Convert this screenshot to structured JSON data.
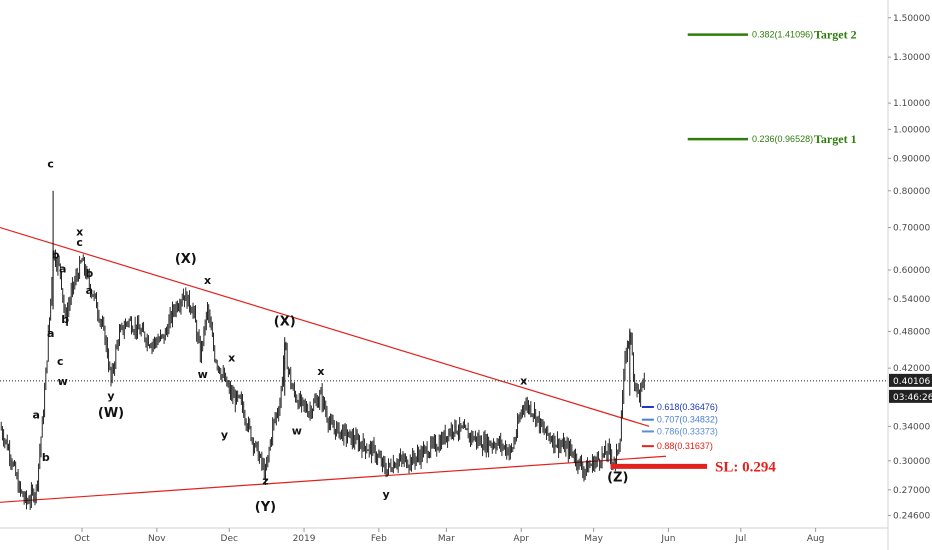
{
  "chart_data": {
    "type": "candlestick",
    "y_scale": "log",
    "ylim": [
      0.235,
      1.6
    ],
    "x_range": [
      "2018-08-28",
      "2019-08-31"
    ],
    "y_ticks": [
      "1.50000",
      "1.30000",
      "1.10000",
      "1.00000",
      "0.90000",
      "0.80000",
      "0.70000",
      "0.60000",
      "0.54000",
      "0.48000",
      "0.42000",
      "0.34000",
      "0.30000",
      "0.27000",
      "0.24600"
    ],
    "y_tick_values": [
      1.5,
      1.3,
      1.1,
      1.0,
      0.9,
      0.8,
      0.7,
      0.6,
      0.54,
      0.48,
      0.42,
      0.34,
      0.3,
      0.27,
      0.246
    ],
    "x_ticks": [
      {
        "label": "Oct",
        "date": "2018-10-01"
      },
      {
        "label": "Nov",
        "date": "2018-11-01"
      },
      {
        "label": "Dec",
        "date": "2018-12-01"
      },
      {
        "label": "2019",
        "date": "2019-01-01"
      },
      {
        "label": "Feb",
        "date": "2019-02-01"
      },
      {
        "label": "Mar",
        "date": "2019-03-01"
      },
      {
        "label": "Apr",
        "date": "2019-04-01"
      },
      {
        "label": "May",
        "date": "2019-05-01"
      },
      {
        "label": "Jun",
        "date": "2019-06-01"
      },
      {
        "label": "Jul",
        "date": "2019-07-01"
      },
      {
        "label": "Aug",
        "date": "2019-08-01"
      }
    ],
    "price_path": [
      [
        "2018-08-28",
        0.34
      ],
      [
        "2018-09-01",
        0.31
      ],
      [
        "2018-09-05",
        0.27
      ],
      [
        "2018-09-08",
        0.258
      ],
      [
        "2018-09-12",
        0.27
      ],
      [
        "2018-09-15",
        0.36
      ],
      [
        "2018-09-18",
        0.54
      ],
      [
        "2018-09-19",
        0.64
      ],
      [
        "2018-09-22",
        0.6
      ],
      [
        "2018-09-24",
        0.5
      ],
      [
        "2018-09-27",
        0.56
      ],
      [
        "2018-10-01",
        0.62
      ],
      [
        "2018-10-04",
        0.57
      ],
      [
        "2018-10-07",
        0.53
      ],
      [
        "2018-10-11",
        0.46
      ],
      [
        "2018-10-13",
        0.4
      ],
      [
        "2018-10-16",
        0.47
      ],
      [
        "2018-10-20",
        0.5
      ],
      [
        "2018-10-25",
        0.48
      ],
      [
        "2018-10-30",
        0.46
      ],
      [
        "2018-11-04",
        0.47
      ],
      [
        "2018-11-08",
        0.52
      ],
      [
        "2018-11-12",
        0.55
      ],
      [
        "2018-11-16",
        0.52
      ],
      [
        "2018-11-19",
        0.44
      ],
      [
        "2018-11-22",
        0.52
      ],
      [
        "2018-11-25",
        0.44
      ],
      [
        "2018-11-28",
        0.41
      ],
      [
        "2018-12-02",
        0.38
      ],
      [
        "2018-12-06",
        0.37
      ],
      [
        "2018-12-10",
        0.33
      ],
      [
        "2018-12-14",
        0.3
      ],
      [
        "2018-12-16",
        0.285
      ],
      [
        "2018-12-19",
        0.34
      ],
      [
        "2018-12-22",
        0.37
      ],
      [
        "2018-12-24",
        0.45
      ],
      [
        "2018-12-27",
        0.39
      ],
      [
        "2018-12-30",
        0.37
      ],
      [
        "2019-01-03",
        0.36
      ],
      [
        "2019-01-08",
        0.38
      ],
      [
        "2019-01-12",
        0.34
      ],
      [
        "2019-01-18",
        0.33
      ],
      [
        "2019-01-24",
        0.32
      ],
      [
        "2019-01-30",
        0.31
      ],
      [
        "2019-02-04",
        0.29
      ],
      [
        "2019-02-08",
        0.3
      ],
      [
        "2019-02-14",
        0.3
      ],
      [
        "2019-02-20",
        0.31
      ],
      [
        "2019-02-26",
        0.32
      ],
      [
        "2019-03-04",
        0.34
      ],
      [
        "2019-03-10",
        0.33
      ],
      [
        "2019-03-16",
        0.32
      ],
      [
        "2019-03-22",
        0.32
      ],
      [
        "2019-03-28",
        0.31
      ],
      [
        "2019-04-02",
        0.37
      ],
      [
        "2019-04-06",
        0.36
      ],
      [
        "2019-04-10",
        0.335
      ],
      [
        "2019-04-16",
        0.32
      ],
      [
        "2019-04-22",
        0.31
      ],
      [
        "2019-04-27",
        0.29
      ],
      [
        "2019-05-02",
        0.3
      ],
      [
        "2019-05-07",
        0.31
      ],
      [
        "2019-05-10",
        0.297
      ],
      [
        "2019-05-12",
        0.33
      ],
      [
        "2019-05-14",
        0.43
      ],
      [
        "2019-05-16",
        0.48
      ],
      [
        "2019-05-18",
        0.4
      ],
      [
        "2019-05-20",
        0.38
      ],
      [
        "2019-05-22",
        0.401
      ]
    ],
    "lines": {
      "downtrend": {
        "from": [
          "2018-08-28",
          0.7
        ],
        "to": [
          "2019-05-24",
          0.34
        ],
        "color": "#e2221d"
      },
      "uptrend": {
        "from": [
          "2018-08-28",
          0.258
        ],
        "to": [
          "2019-05-31",
          0.305
        ],
        "color": "#e2221d"
      },
      "current_price": {
        "value": 0.40106,
        "color": "#222222",
        "style": "dotted"
      }
    },
    "wave_labels": [
      {
        "text": "c",
        "date": "2018-09-18",
        "price": 0.87
      },
      {
        "text": "x",
        "date": "2018-09-30",
        "price": 0.68
      },
      {
        "text": "c",
        "date": "2018-09-30",
        "price": 0.655
      },
      {
        "text": "b",
        "date": "2018-09-20",
        "price": 0.625
      },
      {
        "text": "a",
        "date": "2018-09-23",
        "price": 0.595
      },
      {
        "text": "b",
        "date": "2018-10-04",
        "price": 0.585
      },
      {
        "text": "a",
        "date": "2018-10-04",
        "price": 0.55
      },
      {
        "text": "a",
        "date": "2018-09-18",
        "price": 0.47
      },
      {
        "text": "b",
        "date": "2018-09-24",
        "price": 0.495
      },
      {
        "text": "c",
        "date": "2018-09-22",
        "price": 0.425
      },
      {
        "text": "w",
        "date": "2018-09-23",
        "price": 0.395
      },
      {
        "text": "a",
        "date": "2018-09-12",
        "price": 0.35
      },
      {
        "text": "b",
        "date": "2018-09-16",
        "price": 0.3
      },
      {
        "text": "y",
        "date": "2018-10-13",
        "price": 0.375
      },
      {
        "text": "(W)",
        "date": "2018-10-13",
        "price": 0.352,
        "big": true
      },
      {
        "text": "(X)",
        "date": "2018-11-13",
        "price": 0.615,
        "big": true
      },
      {
        "text": "x",
        "date": "2018-11-22",
        "price": 0.57
      },
      {
        "text": "w",
        "date": "2018-11-20",
        "price": 0.405
      },
      {
        "text": "x",
        "date": "2018-12-02",
        "price": 0.43
      },
      {
        "text": "y",
        "date": "2018-11-29",
        "price": 0.325
      },
      {
        "text": "z",
        "date": "2018-12-16",
        "price": 0.275
      },
      {
        "text": "(Y)",
        "date": "2018-12-16",
        "price": 0.25,
        "big": true
      },
      {
        "text": "(X)",
        "date": "2018-12-24",
        "price": 0.49,
        "big": true
      },
      {
        "text": "w",
        "date": "2018-12-29",
        "price": 0.33
      },
      {
        "text": "x",
        "date": "2019-01-08",
        "price": 0.41
      },
      {
        "text": "y",
        "date": "2019-02-04",
        "price": 0.262
      },
      {
        "text": "x",
        "date": "2019-04-02",
        "price": 0.396
      },
      {
        "text": "(Z)",
        "date": "2019-05-11",
        "price": 0.278,
        "big": true
      }
    ],
    "fib_levels": [
      {
        "label": "0.618(0.36476)",
        "value": 0.36476,
        "color": "#1f35c4"
      },
      {
        "label": "0.707(0.34832)",
        "value": 0.34832,
        "color": "#4a7fcf"
      },
      {
        "label": "0.786(0.33373)",
        "value": 0.33373,
        "color": "#5b8ed6"
      },
      {
        "label": "0.88(0.31637)",
        "value": 0.31637,
        "color": "#e2221d"
      }
    ],
    "stop_loss": {
      "label": "SL: 0.294",
      "value": 0.294,
      "color": "#e2221d"
    },
    "targets": [
      {
        "label": "0.382(1.41096)",
        "value": 1.41096,
        "name": "Target 2",
        "color": "#2e7d0c"
      },
      {
        "label": "0.236(0.96528)",
        "value": 0.96528,
        "name": "Target 1",
        "color": "#2e7d0c"
      }
    ],
    "price_badge": {
      "value": "0.40106",
      "color": "#222222"
    },
    "timer_badge": {
      "value": "03:46:26",
      "color": "#222222"
    }
  }
}
